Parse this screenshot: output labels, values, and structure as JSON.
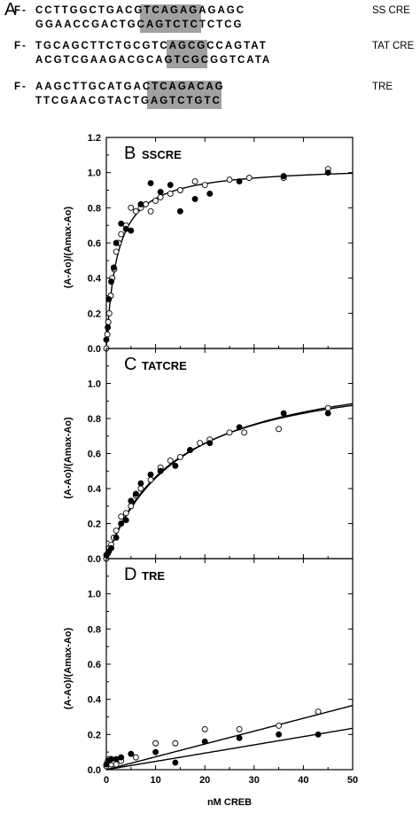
{
  "panel_a": {
    "letter": "A",
    "rows": [
      {
        "prefix": "F-",
        "top": "CCTTGGCTGACGTCAGAGAGAGC",
        "bottom": "GGAACCGACTGCAGTCTCTCTCG",
        "name": "SS CRE"
      },
      {
        "prefix": "F-",
        "top": "TGCAGCTTCTGCGTCAGCGCCAGTAT",
        "bottom": "ACGTCGAAGACGCAGTCGCGGTCATA",
        "name": "TAT CRE"
      },
      {
        "prefix": "F-",
        "top": "AAGCTTGCATGACTCAGACAG",
        "bottom": "TTCGAACGTACTGAGTCTGTC",
        "name": "TRE"
      }
    ]
  },
  "chart_data": [
    {
      "type": "scatter",
      "panel_letter": "B",
      "title": "SSCRE",
      "ylabel": "(A-Ao)/(Amax-Ao)",
      "xlim": [
        0,
        50
      ],
      "ylim": [
        0,
        1.2
      ],
      "yticks": [
        "0.0",
        "0.2",
        "0.4",
        "0.6",
        "0.8",
        "1.0",
        "1.2"
      ],
      "series": [
        {
          "marker": "open",
          "points": [
            [
              0,
              0.0
            ],
            [
              0.2,
              0.08
            ],
            [
              0.4,
              0.15
            ],
            [
              0.6,
              0.2
            ],
            [
              0.9,
              0.3
            ],
            [
              1.2,
              0.4
            ],
            [
              1.6,
              0.45
            ],
            [
              2,
              0.55
            ],
            [
              2.5,
              0.6
            ],
            [
              3,
              0.65
            ],
            [
              4,
              0.7
            ],
            [
              5,
              0.8
            ],
            [
              6,
              0.78
            ],
            [
              7,
              0.8
            ],
            [
              8,
              0.82
            ],
            [
              9,
              0.78
            ],
            [
              10,
              0.84
            ],
            [
              11,
              0.86
            ],
            [
              13,
              0.88
            ],
            [
              15,
              0.9
            ],
            [
              18,
              0.95
            ],
            [
              20,
              0.93
            ],
            [
              25,
              0.96
            ],
            [
              29,
              0.97
            ],
            [
              36,
              0.97
            ],
            [
              45,
              1.02
            ]
          ]
        },
        {
          "marker": "filled",
          "points": [
            [
              0,
              0.05
            ],
            [
              0.3,
              0.12
            ],
            [
              0.5,
              0.28
            ],
            [
              1,
              0.38
            ],
            [
              1.5,
              0.46
            ],
            [
              2,
              0.6
            ],
            [
              3,
              0.71
            ],
            [
              4,
              0.68
            ],
            [
              5,
              0.67
            ],
            [
              7,
              0.82
            ],
            [
              9,
              0.94
            ],
            [
              11,
              0.89
            ],
            [
              13,
              0.93
            ],
            [
              15,
              0.78
            ],
            [
              18,
              0.85
            ],
            [
              21,
              0.88
            ],
            [
              27,
              0.95
            ],
            [
              36,
              0.98
            ],
            [
              45,
              1.0
            ]
          ]
        }
      ],
      "fits": [
        {
          "kd": 2.2,
          "bmax": 1.04
        }
      ]
    },
    {
      "type": "scatter",
      "panel_letter": "C",
      "title": "TATCRE",
      "ylabel": "(A-Ao)/(Amax-Ao)",
      "xlim": [
        0,
        50
      ],
      "ylim": [
        0,
        1.2
      ],
      "yticks": [
        "0.0",
        "0.2",
        "0.4",
        "0.6",
        "0.8",
        "1.0"
      ],
      "series": [
        {
          "marker": "open",
          "points": [
            [
              0,
              0.0
            ],
            [
              0.3,
              0.03
            ],
            [
              0.6,
              0.06
            ],
            [
              1,
              0.08
            ],
            [
              1.5,
              0.12
            ],
            [
              2,
              0.16
            ],
            [
              3,
              0.24
            ],
            [
              4,
              0.26
            ],
            [
              5,
              0.3
            ],
            [
              6,
              0.36
            ],
            [
              7,
              0.4
            ],
            [
              9,
              0.45
            ],
            [
              11,
              0.52
            ],
            [
              13,
              0.56
            ],
            [
              15,
              0.58
            ],
            [
              17,
              0.62
            ],
            [
              19,
              0.66
            ],
            [
              21,
              0.68
            ],
            [
              25,
              0.72
            ],
            [
              28,
              0.72
            ],
            [
              35,
              0.74
            ],
            [
              45,
              0.86
            ]
          ]
        },
        {
          "marker": "filled",
          "points": [
            [
              0,
              0.02
            ],
            [
              0.5,
              0.04
            ],
            [
              1,
              0.06
            ],
            [
              2,
              0.12
            ],
            [
              3,
              0.2
            ],
            [
              4,
              0.22
            ],
            [
              5,
              0.33
            ],
            [
              6,
              0.37
            ],
            [
              7,
              0.43
            ],
            [
              9,
              0.48
            ],
            [
              11,
              0.5
            ],
            [
              14,
              0.53
            ],
            [
              17,
              0.62
            ],
            [
              21,
              0.66
            ],
            [
              27,
              0.75
            ],
            [
              36,
              0.83
            ],
            [
              45,
              0.83
            ]
          ]
        }
      ],
      "fits": [
        {
          "kd": 14,
          "bmax": 1.12
        },
        {
          "kd": 15,
          "bmax": 1.15
        }
      ]
    },
    {
      "type": "scatter",
      "panel_letter": "D",
      "title": "TRE",
      "ylabel": "(A-Ao)/(Amax-Ao)",
      "xlabel": "nM CREB",
      "xlim": [
        0,
        50
      ],
      "ylim": [
        0,
        1.2
      ],
      "xticks": [
        "0",
        "10",
        "20",
        "30",
        "40",
        "50"
      ],
      "yticks": [
        "0.0",
        "0.2",
        "0.4",
        "0.6",
        "0.8",
        "1.0"
      ],
      "series": [
        {
          "marker": "open",
          "points": [
            [
              0,
              0.02
            ],
            [
              0.3,
              0.05
            ],
            [
              0.6,
              0.06
            ],
            [
              1,
              0.03
            ],
            [
              1.5,
              0.05
            ],
            [
              2,
              0.03
            ],
            [
              3,
              0.05
            ],
            [
              6,
              0.07
            ],
            [
              10,
              0.15
            ],
            [
              14,
              0.15
            ],
            [
              20,
              0.23
            ],
            [
              27,
              0.23
            ],
            [
              35,
              0.25
            ],
            [
              43,
              0.33
            ]
          ]
        },
        {
          "marker": "filled",
          "points": [
            [
              0,
              0.03
            ],
            [
              0.5,
              0.05
            ],
            [
              1,
              0.06
            ],
            [
              2,
              0.06
            ],
            [
              3,
              0.07
            ],
            [
              5,
              0.09
            ],
            [
              10,
              0.1
            ],
            [
              14,
              0.04
            ],
            [
              20,
              0.16
            ],
            [
              27,
              0.18
            ],
            [
              35,
              0.2
            ],
            [
              43,
              0.2
            ]
          ]
        }
      ],
      "fits": [
        {
          "slope": 0.0073
        },
        {
          "slope": 0.0047
        }
      ]
    }
  ]
}
